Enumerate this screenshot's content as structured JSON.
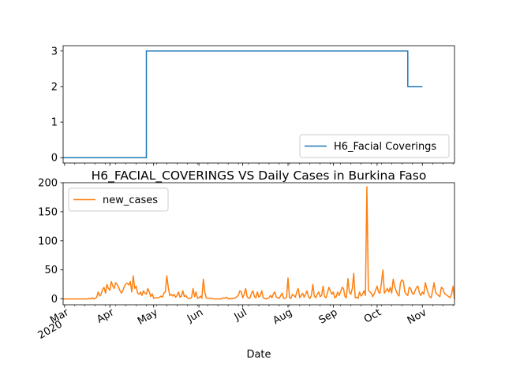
{
  "chart_data": [
    {
      "type": "line",
      "title": "",
      "xlabel": "",
      "ylabel": "",
      "ylim": [
        -0.15,
        3.15
      ],
      "yticks": [
        0,
        1,
        2,
        3
      ],
      "legend": "lower-right",
      "series": [
        {
          "name": "H6_Facial Coverings",
          "color": "#1f77b4",
          "steps": [
            {
              "from": "2020-02-29",
              "value": 0
            },
            {
              "from": "2020-04-26",
              "value": 3
            },
            {
              "from": "2020-10-22",
              "value": 2
            },
            {
              "to": "2020-11-01"
            }
          ]
        }
      ]
    },
    {
      "type": "line",
      "title": "H6_FACIAL_COVERINGS VS Daily Cases in Burkina Faso",
      "xlabel": "Date",
      "ylabel": "",
      "ylim": [
        -10,
        200
      ],
      "yticks": [
        0,
        50,
        100,
        150,
        200
      ],
      "legend": "top-left",
      "x_start": "2020-02-29",
      "xticks": [
        {
          "date": "2020-03-01",
          "label": "Mar",
          "sub": "2020"
        },
        {
          "date": "2020-04-01",
          "label": "Apr"
        },
        {
          "date": "2020-05-01",
          "label": "May"
        },
        {
          "date": "2020-06-01",
          "label": "Jun"
        },
        {
          "date": "2020-07-01",
          "label": "Jul"
        },
        {
          "date": "2020-08-01",
          "label": "Aug"
        },
        {
          "date": "2020-09-01",
          "label": "Sep"
        },
        {
          "date": "2020-10-01",
          "label": "Oct"
        },
        {
          "date": "2020-11-01",
          "label": "Nov"
        }
      ],
      "series": [
        {
          "name": "new_cases",
          "color": "#ff7f0e",
          "values": [
            0,
            0,
            0,
            0,
            0,
            0,
            0,
            0,
            0,
            0,
            0,
            0,
            0,
            0,
            0,
            0,
            0,
            0,
            1,
            0,
            2,
            0,
            1,
            3,
            12,
            5,
            8,
            16,
            20,
            10,
            25,
            18,
            15,
            30,
            22,
            18,
            28,
            25,
            20,
            14,
            10,
            15,
            22,
            26,
            27,
            24,
            30,
            12,
            40,
            18,
            22,
            10,
            8,
            12,
            6,
            14,
            10,
            8,
            18,
            12,
            4,
            9,
            1,
            2,
            2,
            2,
            3,
            5,
            3,
            10,
            12,
            40,
            20,
            6,
            8,
            5,
            8,
            3,
            6,
            12,
            3,
            5,
            14,
            4,
            6,
            2,
            1,
            1,
            3,
            18,
            4,
            12,
            1,
            2,
            5,
            1,
            34,
            12,
            2,
            1,
            1,
            1,
            1,
            0,
            0,
            0,
            0,
            0,
            0,
            1,
            2,
            1,
            3,
            0,
            1,
            0,
            1,
            1,
            2,
            4,
            6,
            14,
            12,
            2,
            8,
            18,
            4,
            1,
            2,
            10,
            14,
            4,
            2,
            12,
            3,
            6,
            14,
            2,
            1,
            0,
            1,
            2,
            6,
            2,
            9,
            12,
            3,
            2,
            1,
            6,
            10,
            1,
            1,
            3,
            36,
            2,
            1,
            8,
            6,
            3,
            12,
            18,
            2,
            6,
            10,
            3,
            8,
            14,
            4,
            1,
            6,
            25,
            5,
            2,
            8,
            12,
            4,
            6,
            22,
            4,
            2,
            10,
            20,
            14,
            8,
            12,
            2,
            4,
            12,
            6,
            12,
            20,
            18,
            4,
            2,
            35,
            12,
            8,
            18,
            44,
            2,
            3,
            1,
            12,
            5,
            8,
            14,
            6,
            193,
            16,
            12,
            10,
            4,
            9,
            15,
            22,
            12,
            10,
            28,
            50,
            10,
            14,
            18,
            12,
            20,
            10,
            34,
            22,
            14,
            8,
            5,
            28,
            33,
            30,
            12,
            8,
            6,
            20,
            18,
            10,
            8,
            14,
            20,
            22,
            10,
            6,
            12,
            8,
            28,
            18,
            10,
            4,
            2,
            14,
            28,
            12,
            8,
            6,
            4,
            20,
            18,
            10,
            8,
            6,
            4,
            2,
            8,
            22,
            0
          ]
        }
      ]
    }
  ]
}
